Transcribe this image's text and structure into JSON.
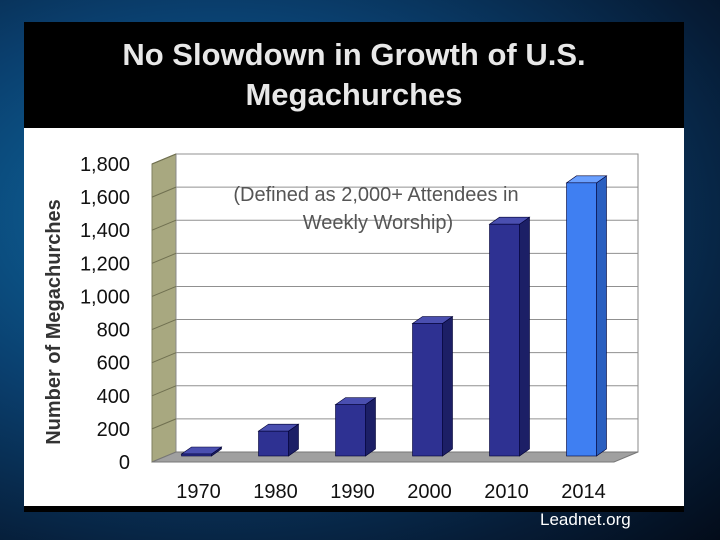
{
  "slide": {
    "title": "No Slowdown in Growth of U.S. Megachurches",
    "credit": "Leadnet.org"
  },
  "colors": {
    "bar": "#2e3192",
    "bar_highlight": "#3f7ff2",
    "wall": "#a8a880",
    "floor": "#a0a0a0"
  },
  "chart_data": {
    "type": "bar",
    "title": "No Slowdown in Growth of U.S. Megachurches",
    "annotation": "(Defined as 2,000+ Attendees in Weekly Worship)",
    "ylabel": "Number of Megachurches",
    "xlabel": "",
    "categories": [
      "1970",
      "1980",
      "1990",
      "2000",
      "2010",
      "2014"
    ],
    "values": [
      10,
      150,
      310,
      800,
      1400,
      1650
    ],
    "ylim": [
      0,
      1800
    ],
    "yticks": [
      0,
      200,
      400,
      600,
      800,
      1000,
      1200,
      1400,
      1600,
      1800
    ],
    "ytick_labels": [
      "0",
      "200",
      "400",
      "600",
      "800",
      "1,000",
      "1,200",
      "1,400",
      "1,600",
      "1,800"
    ],
    "grid": true,
    "highlight_category": "2014"
  }
}
